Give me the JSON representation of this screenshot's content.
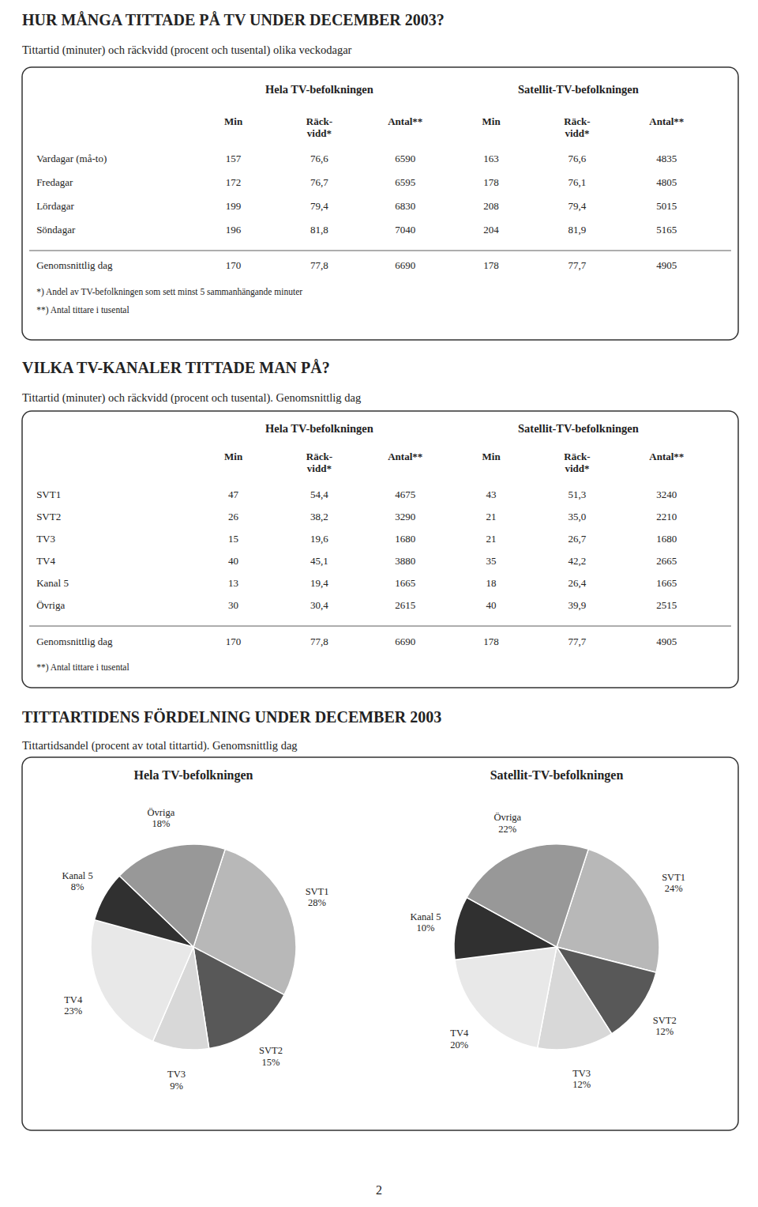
{
  "chart_data": [
    {
      "type": "table",
      "title": "HUR MÅNGA TITTADE PÅ TV UNDER DECEMBER 2003?",
      "subtitle": "Tittartid (minuter) och räckvidd (procent och tusental) olika veckodagar",
      "column_groups": [
        "Hela TV-befolkningen",
        "Satellit-TV-befolkningen"
      ],
      "columns": [
        "Min",
        "Räck-\nvidd*",
        "Antal**",
        "Min",
        "Räck-\nvidd*",
        "Antal**"
      ],
      "rows": [
        [
          "Vardagar (må-to)",
          "157",
          "76,6",
          "6590",
          "163",
          "76,6",
          "4835"
        ],
        [
          "Fredagar",
          "172",
          "76,7",
          "6595",
          "178",
          "76,1",
          "4805"
        ],
        [
          "Lördagar",
          "199",
          "79,4",
          "6830",
          "208",
          "79,4",
          "5015"
        ],
        [
          "Söndagar",
          "196",
          "81,8",
          "7040",
          "204",
          "81,9",
          "5165"
        ]
      ],
      "summary_row": [
        "Genomsnittlig dag",
        "170",
        "77,8",
        "6690",
        "178",
        "77,7",
        "4905"
      ],
      "footnotes": [
        "*) Andel av TV-befolkningen som sett minst 5 sammanhängande minuter",
        "**) Antal tittare i tusental"
      ]
    },
    {
      "type": "table",
      "title": "VILKA TV-KANALER TITTADE MAN PÅ?",
      "subtitle": "Tittartid (minuter) och räckvidd (procent och tusental). Genomsnittlig dag",
      "column_groups": [
        "Hela TV-befolkningen",
        "Satellit-TV-befolkningen"
      ],
      "columns": [
        "Min",
        "Räck-\nvidd*",
        "Antal**",
        "Min",
        "Räck-\nvidd*",
        "Antal**"
      ],
      "rows": [
        [
          "SVT1",
          "47",
          "54,4",
          "4675",
          "43",
          "51,3",
          "3240"
        ],
        [
          "SVT2",
          "26",
          "38,2",
          "3290",
          "21",
          "35,0",
          "2210"
        ],
        [
          "TV3",
          "15",
          "19,6",
          "1680",
          "21",
          "26,7",
          "1680"
        ],
        [
          "TV4",
          "40",
          "45,1",
          "3880",
          "35",
          "42,2",
          "2665"
        ],
        [
          "Kanal 5",
          "13",
          "19,4",
          "1665",
          "18",
          "26,4",
          "1665"
        ],
        [
          "Övriga",
          "30",
          "30,4",
          "2615",
          "40",
          "39,9",
          "2515"
        ]
      ],
      "summary_row": [
        "Genomsnittlig dag",
        "170",
        "77,8",
        "6690",
        "178",
        "77,7",
        "4905"
      ],
      "footnotes": [
        "**) Antal tittare i tusental"
      ]
    },
    {
      "type": "pie_group",
      "title": "TITTARTIDENS FÖRDELNING UNDER DECEMBER 2003",
      "subtitle": "Tittartidsandel (procent av total tittartid). Genomsnittlig dag",
      "charts": [
        {
          "type": "pie",
          "title": "Hela TV-befolkningen",
          "categories": [
            "SVT1",
            "SVT2",
            "TV3",
            "TV4",
            "Kanal 5",
            "Övriga"
          ],
          "values": [
            28,
            15,
            9,
            23,
            8,
            18
          ],
          "value_labels": [
            "28%",
            "15%",
            "9%",
            "23%",
            "8%",
            "18%"
          ],
          "colors": [
            "#b8b8b8",
            "#585858",
            "#d8d8d8",
            "#e8e8e8",
            "#303030",
            "#989898"
          ],
          "data_labels": true
        },
        {
          "type": "pie",
          "title": "Satellit-TV-befolkningen",
          "categories": [
            "SVT1",
            "SVT2",
            "TV3",
            "TV4",
            "Kanal 5",
            "Övriga"
          ],
          "values": [
            24,
            12,
            12,
            20,
            10,
            22
          ],
          "value_labels": [
            "24%",
            "12%",
            "12%",
            "20%",
            "10%",
            "22%"
          ],
          "colors": [
            "#b8b8b8",
            "#585858",
            "#d8d8d8",
            "#e8e8e8",
            "#303030",
            "#989898"
          ],
          "data_labels": true
        }
      ]
    }
  ],
  "page_number": "2"
}
